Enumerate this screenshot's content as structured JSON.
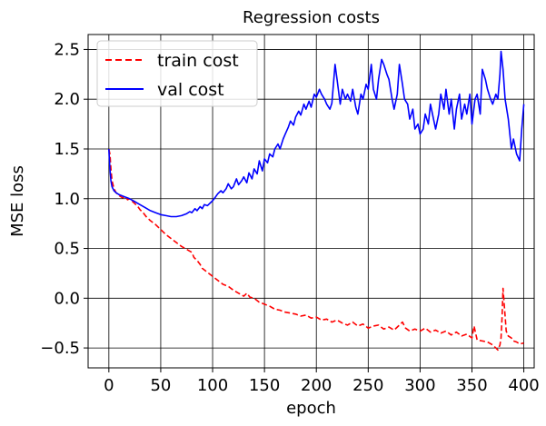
{
  "chart_data": {
    "type": "line",
    "title": "Regression costs",
    "xlabel": "epoch",
    "ylabel": "MSE loss",
    "xlim": [
      -20,
      410
    ],
    "ylim": [
      -0.7,
      2.65
    ],
    "xticks": [
      0,
      50,
      100,
      150,
      200,
      250,
      300,
      350,
      400
    ],
    "yticks": [
      -0.5,
      0.0,
      0.5,
      1.0,
      1.5,
      2.0,
      2.5
    ],
    "xtick_labels": [
      "0",
      "50",
      "100",
      "150",
      "200",
      "250",
      "300",
      "350",
      "400"
    ],
    "ytick_labels": [
      "−0.5",
      "0.0",
      "0.5",
      "1.0",
      "1.5",
      "2.0",
      "2.5"
    ],
    "grid": true,
    "legend_position": "top-left",
    "series": [
      {
        "name": "train cost",
        "color": "#ff0000",
        "style": "dashed",
        "x": [
          0,
          1,
          2,
          3,
          5,
          7,
          10,
          13,
          16,
          18,
          20,
          22,
          25,
          28,
          30,
          33,
          36,
          40,
          45,
          50,
          55,
          60,
          65,
          70,
          75,
          80,
          82,
          85,
          88,
          90,
          95,
          100,
          105,
          110,
          115,
          120,
          125,
          130,
          133,
          136,
          140,
          145,
          150,
          155,
          160,
          165,
          170,
          175,
          180,
          185,
          190,
          195,
          200,
          205,
          210,
          215,
          220,
          225,
          230,
          235,
          240,
          245,
          250,
          255,
          260,
          265,
          270,
          275,
          280,
          283,
          286,
          290,
          295,
          300,
          305,
          310,
          315,
          320,
          325,
          330,
          335,
          340,
          345,
          350,
          352,
          355,
          360,
          365,
          370,
          373,
          375,
          377,
          378,
          379,
          380,
          381,
          382,
          383,
          385,
          388,
          390,
          393,
          396,
          400
        ],
        "y": [
          1.5,
          1.45,
          1.3,
          1.18,
          1.1,
          1.06,
          1.03,
          1.01,
          1.02,
          0.99,
          1.0,
          0.98,
          0.95,
          0.92,
          0.89,
          0.86,
          0.82,
          0.78,
          0.74,
          0.69,
          0.64,
          0.6,
          0.56,
          0.52,
          0.49,
          0.46,
          0.41,
          0.38,
          0.34,
          0.3,
          0.26,
          0.22,
          0.18,
          0.14,
          0.12,
          0.08,
          0.05,
          0.02,
          0.05,
          0.01,
          0.0,
          -0.04,
          -0.06,
          -0.08,
          -0.11,
          -0.12,
          -0.14,
          -0.15,
          -0.16,
          -0.18,
          -0.17,
          -0.2,
          -0.19,
          -0.22,
          -0.21,
          -0.24,
          -0.22,
          -0.25,
          -0.27,
          -0.24,
          -0.28,
          -0.26,
          -0.3,
          -0.28,
          -0.27,
          -0.31,
          -0.29,
          -0.32,
          -0.27,
          -0.24,
          -0.3,
          -0.33,
          -0.31,
          -0.33,
          -0.3,
          -0.34,
          -0.32,
          -0.35,
          -0.33,
          -0.37,
          -0.34,
          -0.38,
          -0.36,
          -0.4,
          -0.28,
          -0.42,
          -0.43,
          -0.44,
          -0.47,
          -0.5,
          -0.52,
          -0.47,
          -0.4,
          -0.2,
          0.1,
          -0.05,
          -0.18,
          -0.33,
          -0.38,
          -0.4,
          -0.43,
          -0.44,
          -0.46,
          -0.45
        ]
      },
      {
        "name": "val cost",
        "color": "#0000ff",
        "style": "solid",
        "x": [
          0,
          1,
          2,
          3,
          5,
          7,
          10,
          15,
          20,
          25,
          30,
          35,
          40,
          45,
          50,
          55,
          60,
          65,
          70,
          75,
          78,
          80,
          83,
          85,
          88,
          90,
          92,
          95,
          100,
          103,
          105,
          108,
          110,
          113,
          115,
          118,
          120,
          123,
          125,
          128,
          130,
          133,
          135,
          138,
          140,
          143,
          145,
          148,
          150,
          153,
          155,
          158,
          160,
          163,
          165,
          168,
          170,
          173,
          175,
          178,
          180,
          183,
          185,
          188,
          190,
          193,
          195,
          198,
          200,
          203,
          205,
          208,
          210,
          213,
          215,
          218,
          220,
          223,
          225,
          228,
          230,
          233,
          235,
          238,
          240,
          243,
          245,
          248,
          250,
          253,
          255,
          258,
          260,
          263,
          265,
          268,
          270,
          273,
          275,
          278,
          280,
          283,
          285,
          288,
          290,
          293,
          295,
          298,
          300,
          303,
          305,
          308,
          310,
          313,
          315,
          318,
          320,
          323,
          325,
          328,
          330,
          333,
          335,
          338,
          340,
          343,
          345,
          348,
          350,
          353,
          355,
          358,
          360,
          363,
          365,
          368,
          370,
          373,
          375,
          377,
          378,
          380,
          382,
          385,
          388,
          390,
          393,
          396,
          398,
          400
        ],
        "y": [
          1.5,
          1.3,
          1.18,
          1.12,
          1.08,
          1.06,
          1.04,
          1.02,
          1.0,
          0.97,
          0.94,
          0.91,
          0.88,
          0.86,
          0.84,
          0.83,
          0.82,
          0.82,
          0.83,
          0.85,
          0.87,
          0.86,
          0.9,
          0.88,
          0.92,
          0.9,
          0.94,
          0.93,
          0.98,
          1.02,
          1.05,
          1.08,
          1.06,
          1.1,
          1.15,
          1.1,
          1.12,
          1.2,
          1.14,
          1.18,
          1.22,
          1.16,
          1.26,
          1.2,
          1.3,
          1.25,
          1.38,
          1.28,
          1.4,
          1.36,
          1.45,
          1.42,
          1.5,
          1.55,
          1.5,
          1.6,
          1.65,
          1.72,
          1.78,
          1.74,
          1.82,
          1.88,
          1.84,
          1.95,
          1.9,
          1.98,
          1.92,
          2.05,
          2.02,
          2.1,
          2.05,
          2.0,
          1.95,
          1.9,
          1.96,
          2.35,
          2.2,
          1.95,
          2.1,
          2.0,
          2.05,
          1.98,
          2.1,
          1.92,
          1.85,
          2.05,
          2.0,
          2.15,
          2.1,
          2.35,
          2.1,
          2.0,
          2.2,
          2.4,
          2.35,
          2.25,
          2.2,
          2.0,
          1.9,
          2.05,
          2.35,
          2.15,
          2.0,
          1.95,
          1.8,
          1.9,
          1.7,
          1.75,
          1.65,
          1.7,
          1.85,
          1.75,
          1.95,
          1.8,
          1.7,
          1.85,
          2.05,
          1.9,
          2.1,
          1.85,
          2.0,
          1.7,
          1.9,
          2.05,
          1.8,
          1.95,
          1.85,
          2.05,
          1.75,
          2.0,
          2.05,
          1.85,
          2.3,
          2.2,
          2.1,
          2.0,
          1.95,
          2.05,
          2.0,
          2.25,
          2.48,
          2.3,
          2.0,
          1.8,
          1.5,
          1.6,
          1.45,
          1.38,
          1.7,
          1.95
        ]
      }
    ]
  }
}
